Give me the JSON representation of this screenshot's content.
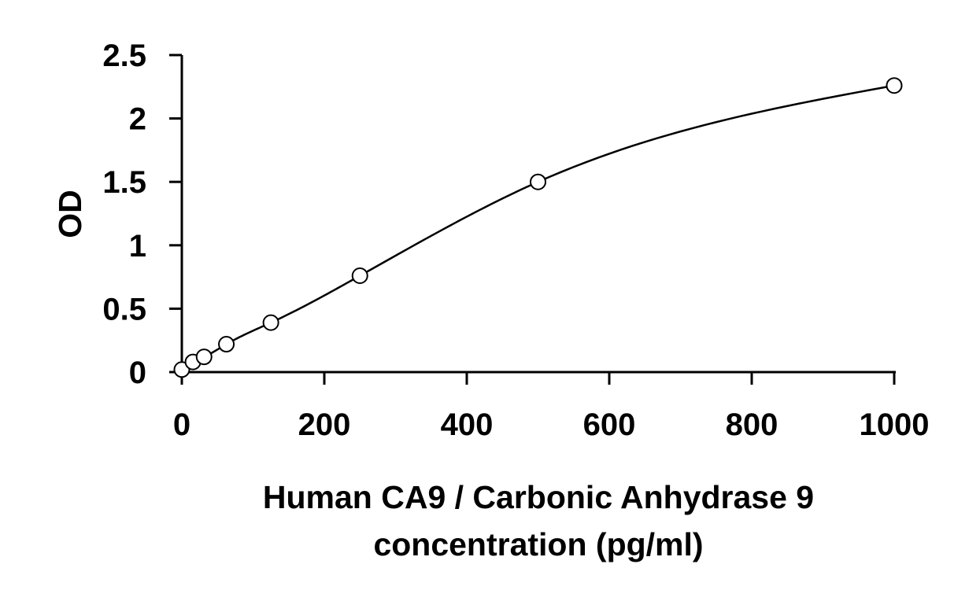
{
  "chart_data": {
    "type": "scatter",
    "title": "",
    "xlabel_lines": [
      "Human CA9 / Carbonic Anhydrase 9",
      "concentration (pg/ml)"
    ],
    "ylabel": "OD",
    "xlim": [
      0,
      1000
    ],
    "ylim": [
      0,
      2.5
    ],
    "x_ticks": [
      0,
      200,
      400,
      600,
      800,
      1000
    ],
    "y_ticks": [
      0,
      0.5,
      1,
      1.5,
      2,
      2.5
    ],
    "x_tick_labels": [
      "0",
      "200",
      "400",
      "600",
      "800",
      "1000"
    ],
    "y_tick_labels": [
      "0",
      "0.5",
      "1",
      "1.5",
      "2",
      "2.5"
    ],
    "grid": false,
    "legend": "none",
    "series": [
      {
        "x": [
          0,
          15.6,
          31.2,
          62.5,
          125,
          250,
          500,
          1000
        ],
        "y": [
          0.02,
          0.08,
          0.12,
          0.22,
          0.39,
          0.76,
          1.5,
          2.26
        ],
        "marker": "open-circle",
        "fit_line": "smooth"
      }
    ]
  }
}
